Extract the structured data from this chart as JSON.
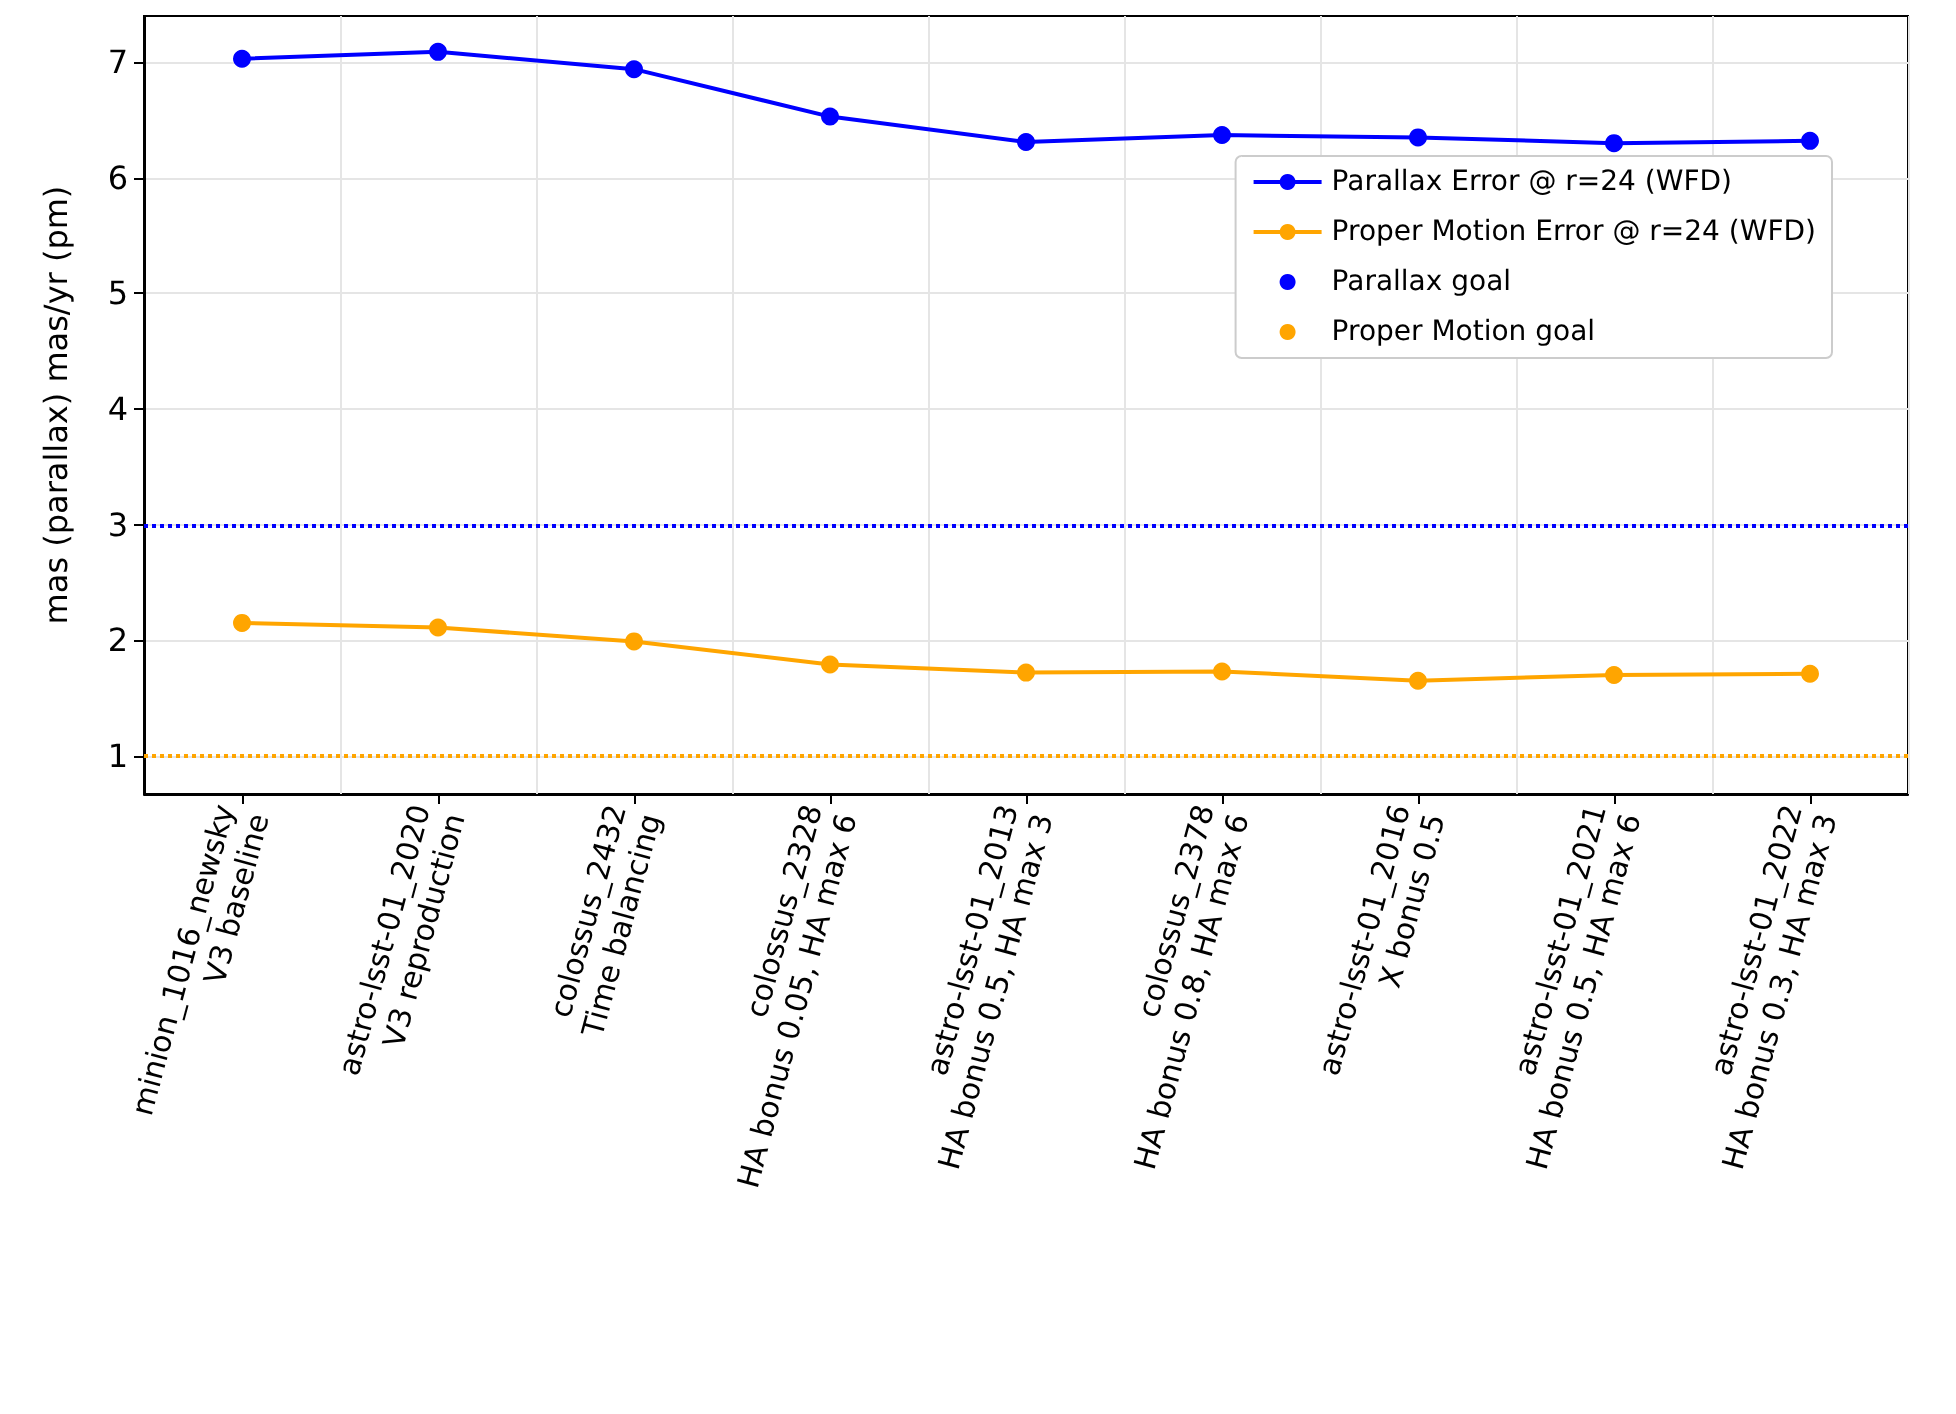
{
  "chart_data": {
    "type": "line",
    "ylabel": "mas (parallax) mas/yr (pm)",
    "categories": [
      "minion_1016_newsky\nV3 baseline",
      "astro-lsst-01_2020\nV3 reproduction",
      "colossus_2432\nTime balancing",
      "colossus_2328\nHA bonus 0.05, HA max 6",
      "astro-lsst-01_2013\nHA bonus 0.5, HA max 3",
      "colossus_2378\nHA bonus 0.8, HA max 6",
      "astro-lsst-01_2016\nX bonus 0.5",
      "astro-lsst-01_2021\nHA bonus 0.5, HA max 6",
      "astro-lsst-01_2022\nHA bonus 0.3, HA max 3"
    ],
    "series": [
      {
        "name": "Parallax Error @ r=24 (WFD)",
        "color": "#0000ff",
        "values": [
          7.03,
          7.09,
          6.94,
          6.53,
          6.31,
          6.37,
          6.35,
          6.3,
          6.32
        ]
      },
      {
        "name": "Proper Motion Error @ r=24 (WFD)",
        "color": "#ffa500",
        "values": [
          2.15,
          2.11,
          1.99,
          1.79,
          1.72,
          1.73,
          1.65,
          1.7,
          1.71
        ]
      }
    ],
    "ref_lines": [
      {
        "axis": "y",
        "value": 3,
        "label": "Parallax goal",
        "color": "#0000ff",
        "line_style": "dotted"
      },
      {
        "axis": "y",
        "value": 1,
        "label": "Proper Motion goal",
        "color": "#ffa500",
        "line_style": "dotted"
      }
    ],
    "ylim": [
      0.67,
      7.4
    ],
    "yticks": [
      1,
      2,
      3,
      4,
      5,
      6,
      7
    ],
    "grid": true,
    "legend": "top right",
    "marker": "circle",
    "line_style": "solid"
  }
}
